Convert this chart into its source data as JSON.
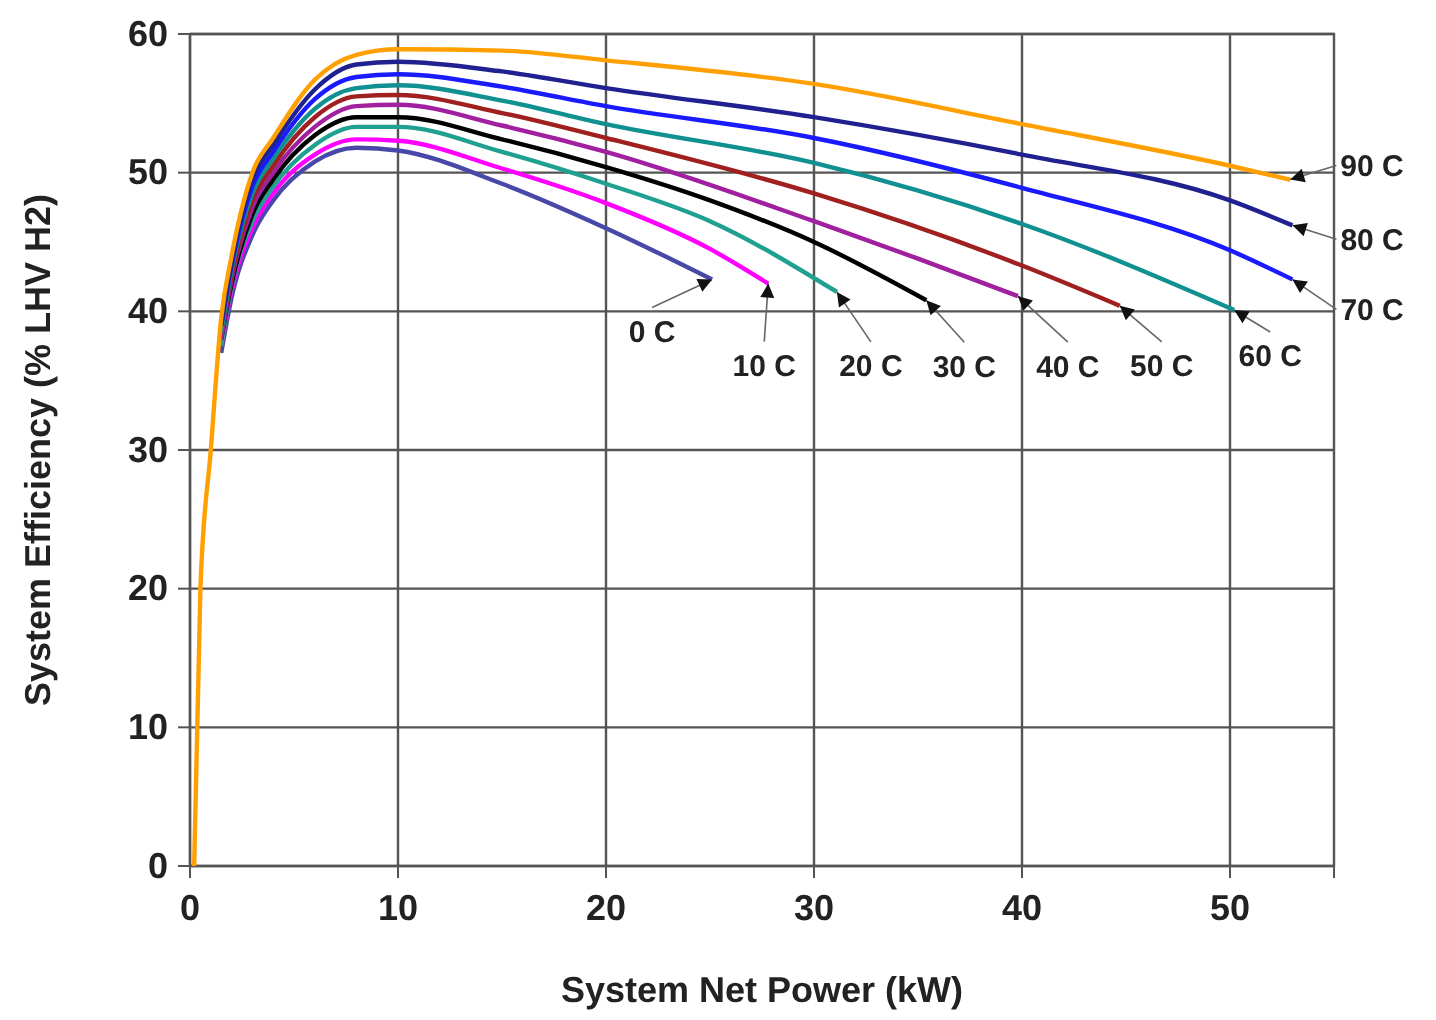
{
  "chart_data": {
    "type": "line",
    "xlabel": "System Net Power (kW)",
    "ylabel": "System Efficiency (% LHV H2)",
    "xlim": [
      0,
      55
    ],
    "xticks": [
      0,
      10,
      20,
      30,
      40,
      50
    ],
    "ylim": [
      0,
      60
    ],
    "yticks": [
      0,
      10,
      20,
      30,
      40,
      50,
      60
    ],
    "grid": true,
    "legend": false,
    "marker": "none",
    "line_style": "solid",
    "series": [
      {
        "name": "0 C",
        "color": "#4848a8",
        "x": [
          1.5,
          2,
          3,
          4,
          6,
          8,
          10,
          15,
          20,
          25.1
        ],
        "values": [
          37,
          41,
          45.5,
          48,
          50.8,
          51.8,
          51.6,
          49.2,
          46,
          42.3
        ]
      },
      {
        "name": "10 C",
        "color": "#ff00ff",
        "x": [
          1.5,
          2,
          3,
          4,
          6,
          8,
          10,
          15,
          20,
          25,
          27.8
        ],
        "values": [
          37.5,
          41.5,
          46,
          48.5,
          51.3,
          52.4,
          52.3,
          50.3,
          47.8,
          44.5,
          42
        ]
      },
      {
        "name": "20 C",
        "color": "#20a090",
        "x": [
          1.5,
          2,
          3,
          4,
          6,
          8,
          10,
          15,
          20,
          25,
          31.1
        ],
        "values": [
          37.5,
          41.8,
          46.5,
          49,
          52,
          53.3,
          53.3,
          51.5,
          49.2,
          46.5,
          41.4
        ]
      },
      {
        "name": "30 C",
        "color": "#000000",
        "x": [
          1.5,
          2,
          3,
          4,
          6,
          8,
          10,
          15,
          20,
          25,
          30,
          35.4
        ],
        "values": [
          38,
          42,
          47,
          49.5,
          52.7,
          54,
          54,
          52.4,
          50.4,
          48,
          45,
          40.8
        ]
      },
      {
        "name": "40 C",
        "color": "#a020a0",
        "x": [
          1.5,
          2,
          3,
          4,
          6,
          8,
          10,
          15,
          20,
          30,
          35,
          39.8
        ],
        "values": [
          38,
          42.3,
          47.5,
          50,
          53.3,
          54.8,
          54.9,
          53.4,
          51.5,
          46.5,
          43.8,
          41.1
        ]
      },
      {
        "name": "50 C",
        "color": "#a02020",
        "x": [
          1.5,
          2,
          3,
          4,
          6,
          8,
          10,
          15,
          20,
          30,
          40,
          44.7
        ],
        "values": [
          38.5,
          42.6,
          48,
          50.5,
          54,
          55.5,
          55.6,
          54.3,
          52.5,
          48.5,
          43.3,
          40.4
        ]
      },
      {
        "name": "60 C",
        "color": "#109090",
        "x": [
          1.5,
          2,
          3,
          4,
          6,
          8,
          10,
          15,
          20,
          30,
          40,
          50.2
        ],
        "values": [
          38.5,
          43,
          48.5,
          51,
          54.6,
          56.1,
          56.3,
          55.2,
          53.5,
          50.7,
          46.3,
          40.1
        ]
      },
      {
        "name": "70 C",
        "color": "#1a1aff",
        "x": [
          1.5,
          2,
          3,
          4,
          6,
          8,
          10,
          15,
          20,
          30,
          40,
          50,
          53
        ],
        "values": [
          39,
          43.3,
          49,
          51.5,
          55.3,
          56.9,
          57.1,
          56.2,
          54.8,
          52.5,
          48.9,
          44.4,
          42.3
        ]
      },
      {
        "name": "80 C",
        "color": "#202090",
        "x": [
          1.5,
          2,
          3,
          4,
          6,
          8,
          10,
          15,
          20,
          30,
          40,
          50,
          53
        ],
        "values": [
          39,
          43.6,
          49.5,
          52,
          56,
          57.8,
          58,
          57.3,
          56.1,
          54,
          51.3,
          48,
          46.2
        ]
      },
      {
        "name": "90 C",
        "color": "#ffa000",
        "x": [
          0.2,
          0.5,
          1,
          1.5,
          2,
          3,
          4,
          6,
          8,
          10,
          15,
          20,
          30,
          40,
          50,
          52.9
        ],
        "values": [
          0,
          20,
          30,
          39.5,
          44,
          50,
          52.5,
          56.7,
          58.5,
          58.9,
          58.8,
          58.1,
          56.4,
          53.5,
          50.5,
          49.5
        ]
      }
    ]
  }
}
